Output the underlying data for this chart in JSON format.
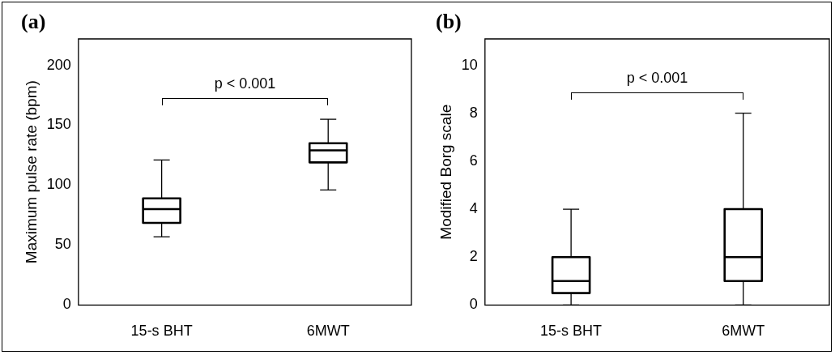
{
  "chart_data": [
    {
      "type": "box",
      "title": "(a)",
      "ylabel": "Maximum pulse rate (bpm)",
      "categories": [
        "15-s BHT",
        "6MWT"
      ],
      "boxes": [
        {
          "low": 57,
          "q1": 68.5,
          "median": 80,
          "q3": 89,
          "high": 121
        },
        {
          "low": 96,
          "q1": 119,
          "median": 129,
          "q3": 135,
          "high": 155
        }
      ],
      "ylim": [
        0,
        222
      ],
      "yticks": [
        0,
        50,
        100,
        150,
        200
      ],
      "annotations": [
        "p < 0.001"
      ]
    },
    {
      "type": "box",
      "title": "(b)",
      "ylabel": "Modified Borg scale",
      "categories": [
        "15-s BHT",
        "6MWT"
      ],
      "boxes": [
        {
          "low": 0,
          "q1": 0.5,
          "median": 1,
          "q3": 2,
          "high": 4
        },
        {
          "low": 0,
          "q1": 1,
          "median": 2,
          "q3": 4,
          "high": 8
        }
      ],
      "ylim": [
        0,
        11.1
      ],
      "yticks": [
        0,
        2,
        4,
        6,
        8,
        10
      ],
      "annotations": [
        "p < 0.001"
      ]
    }
  ]
}
